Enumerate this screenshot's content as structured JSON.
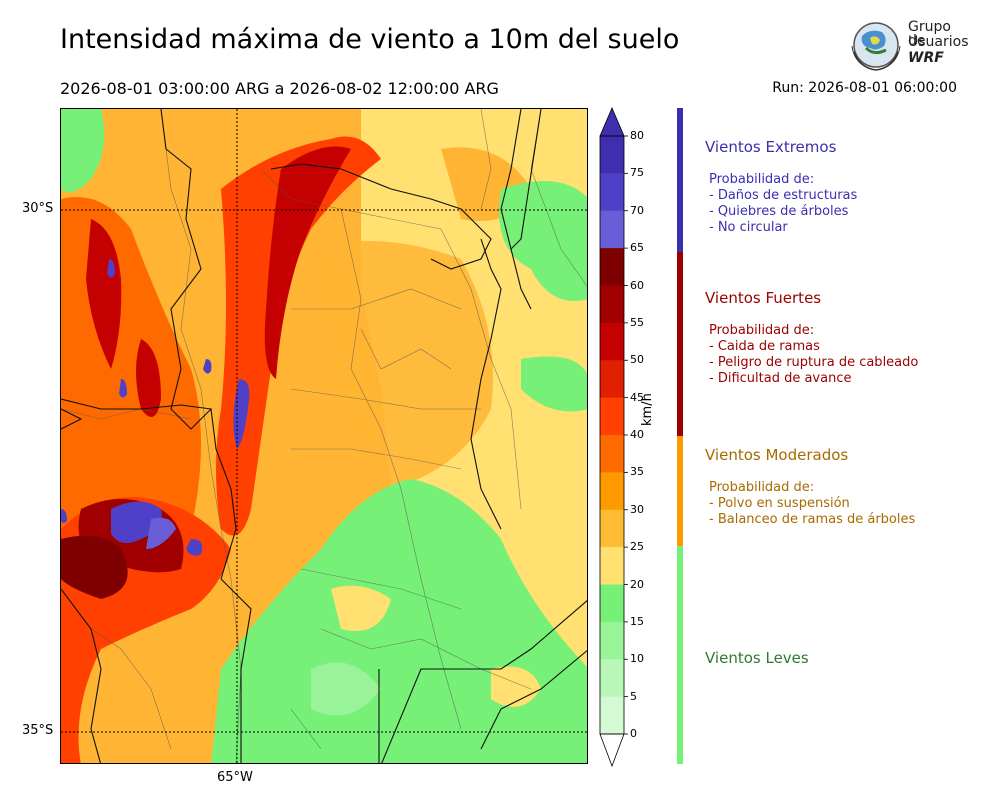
{
  "header": {
    "title": "Intensidad máxima de viento a 10m del suelo",
    "period": "2026-08-01 03:00:00 ARG  a  2026-08-02 12:00:00 ARG",
    "run": "Run: 2026-08-01 06:00:00"
  },
  "logo": {
    "line1": "Grupo de",
    "line2": "Usuarios",
    "line3": "WRF"
  },
  "map": {
    "lat_labels": [
      "30°S",
      "35°S"
    ],
    "lon_labels": [
      "65°W"
    ]
  },
  "colorbar": {
    "unit": "km/h",
    "ticks": [
      "80",
      "75",
      "70",
      "65",
      "60",
      "55",
      "50",
      "45",
      "40",
      "35",
      "30",
      "25",
      "20",
      "15",
      "10",
      "5",
      "0"
    ],
    "colors": [
      "#3f2fae",
      "#5040c8",
      "#6a5ed8",
      "#7f0000",
      "#a00000",
      "#c40000",
      "#e02000",
      "#ff4000",
      "#ff6a00",
      "#ff9900",
      "#ffbb33",
      "#ffe070",
      "#77f077",
      "#99f399",
      "#b8f7b8",
      "#d4fad4",
      "#ecfdec"
    ]
  },
  "categories": [
    {
      "title": "Vientos Extremos",
      "color": "#3a2fb0",
      "lines": [
        "Probabilidad de:",
        "- Daños de estructuras",
        "- Quiebres de árboles",
        "- No circular"
      ]
    },
    {
      "title": "Vientos Fuertes",
      "color": "#9b0000",
      "lines": [
        "Probabilidad de:",
        "- Caida de ramas",
        "- Peligro de ruptura de cableado",
        "- Dificultad de avance"
      ]
    },
    {
      "title": "Vientos Moderados",
      "color": "#a86a00",
      "lines": [
        "Probabilidad de:",
        "- Polvo en suspensión",
        "- Balanceo de ramas de árboles"
      ]
    },
    {
      "title": "Vientos Leves",
      "color": "#2e7a2e",
      "lines": []
    }
  ]
}
